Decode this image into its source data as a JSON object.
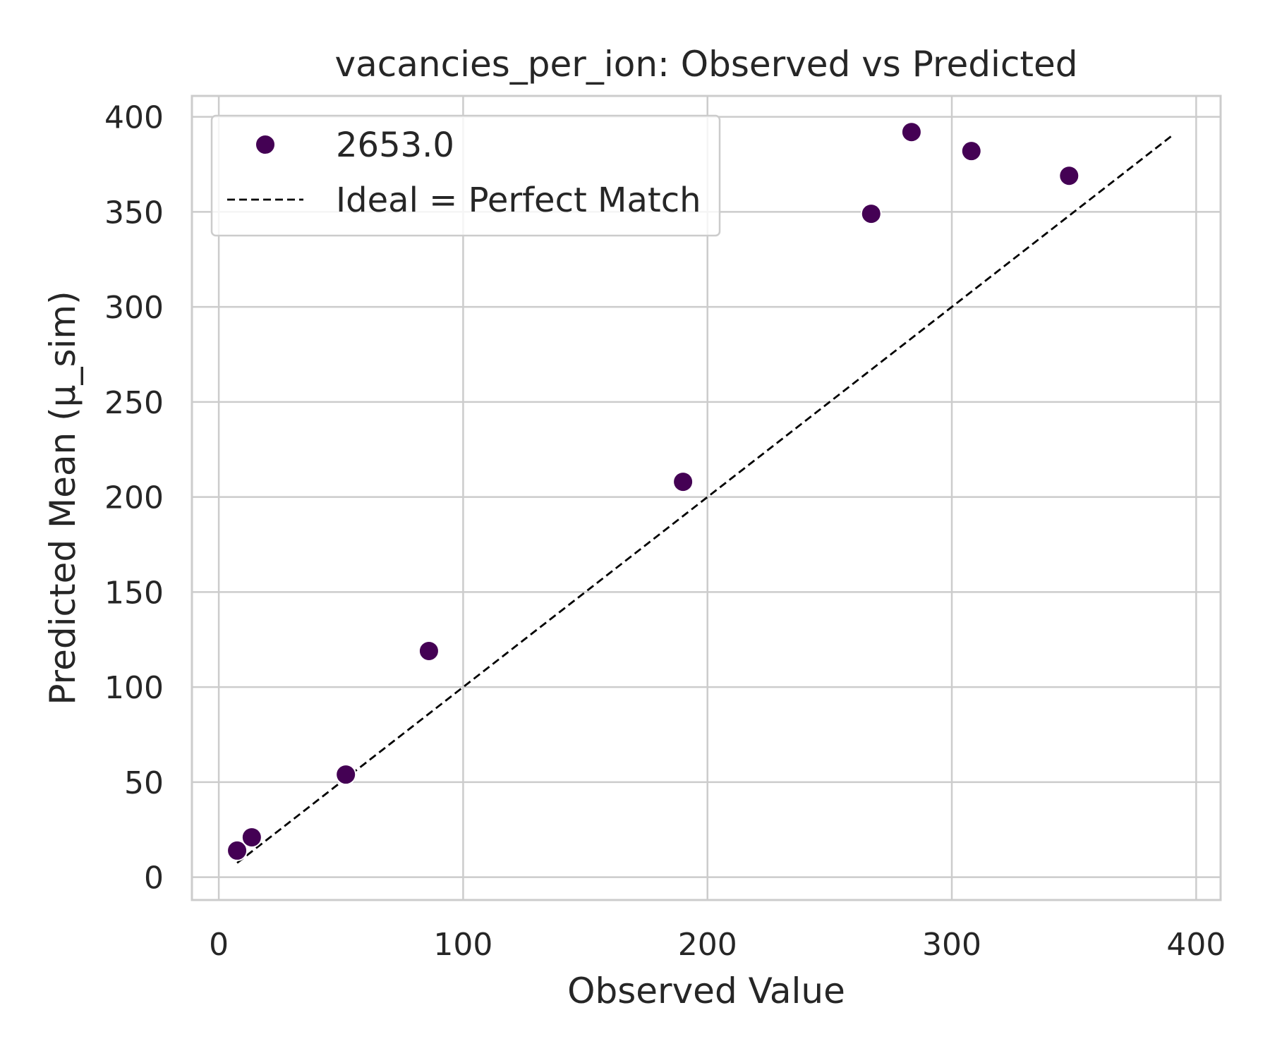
{
  "chart_data": {
    "type": "scatter",
    "title": "vacancies_per_ion: Observed vs Predicted",
    "xlabel": "Observed Value",
    "ylabel": "Predicted Mean (μ_sim)",
    "xlim": [
      -11,
      410
    ],
    "ylim": [
      -12,
      411
    ],
    "x_ticks": [
      0,
      100,
      200,
      300,
      400
    ],
    "y_ticks": [
      0,
      50,
      100,
      150,
      200,
      250,
      300,
      350,
      400
    ],
    "grid": true,
    "legend_position": "upper-left",
    "marker_color": "#440154",
    "series": [
      {
        "name": "2653.0",
        "type": "scatter",
        "points": [
          {
            "x": 7.5,
            "y": 14
          },
          {
            "x": 13.5,
            "y": 21
          },
          {
            "x": 52,
            "y": 54
          },
          {
            "x": 86,
            "y": 119
          },
          {
            "x": 190,
            "y": 208
          },
          {
            "x": 267,
            "y": 349
          },
          {
            "x": 283.5,
            "y": 392
          },
          {
            "x": 308,
            "y": 382
          },
          {
            "x": 348,
            "y": 369
          }
        ]
      },
      {
        "name": "Ideal = Perfect Match",
        "type": "line",
        "style": "dashed",
        "color": "#000000",
        "points": [
          {
            "x": 7.5,
            "y": 7.5
          },
          {
            "x": 390,
            "y": 390
          }
        ]
      }
    ]
  }
}
